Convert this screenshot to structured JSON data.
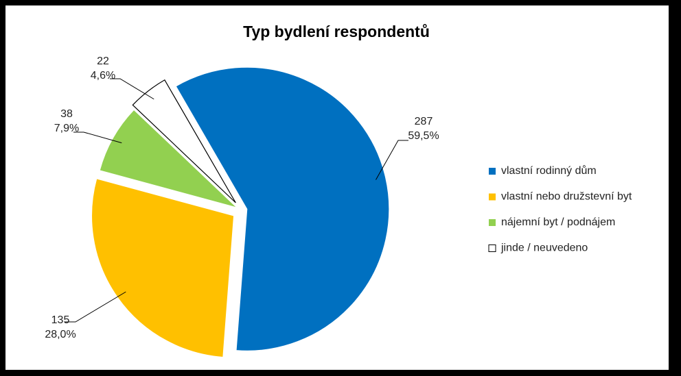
{
  "chart_data": {
    "type": "pie",
    "title": "Typ bydlení respondentů",
    "categories": [
      "vlastní rodinný dům",
      "vlastní nebo družstevní byt",
      "nájemní byt / podnájem",
      "jinde / neuvedeno"
    ],
    "values": [
      287,
      135,
      38,
      22
    ],
    "percentages": [
      59.5,
      28.0,
      7.9,
      4.6
    ],
    "percentage_labels": [
      "59,5%",
      "28,0%",
      "7,9%",
      "4,6%"
    ],
    "colors": [
      "#0070c0",
      "#ffc000",
      "#92d050",
      "#ffffff"
    ],
    "legend": "right"
  }
}
